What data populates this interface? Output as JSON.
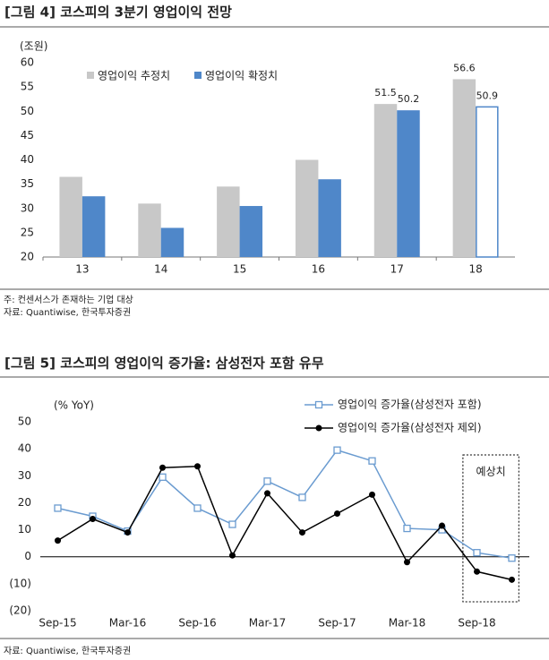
{
  "chart_data": [
    {
      "type": "bar",
      "title": "[그림 4] 코스피의 3분기 영업이익 전망",
      "unit_label": "(조원)",
      "categories": [
        "13",
        "14",
        "15",
        "16",
        "17",
        "18"
      ],
      "series": [
        {
          "name": "영업이익 추정치",
          "color": "#c8c8c8",
          "values": [
            36.5,
            31,
            34.5,
            40,
            51.5,
            56.6
          ],
          "value_labels": [
            null,
            null,
            null,
            null,
            "51.5",
            "56.6"
          ]
        },
        {
          "name": "영업이익 확정치",
          "color": "#4f87c9",
          "values": [
            32.5,
            26,
            30.5,
            36,
            50.2,
            50.9
          ],
          "value_labels": [
            null,
            null,
            null,
            null,
            "50.2",
            "50.9"
          ],
          "hollow_indices": [
            5
          ]
        }
      ],
      "ylim": [
        20,
        60
      ],
      "yticks": [
        20,
        25,
        30,
        35,
        40,
        45,
        50,
        55,
        60
      ],
      "legend": "top-left",
      "notes": [
        "주: 컨센서스가 존재하는 기업 대상",
        "자료: Quantiwise, 한국투자증권"
      ]
    },
    {
      "type": "line",
      "title": "[그림 5] 코스피의 영업이익 증가율: 삼성전자 포함 유무",
      "unit_label": "(% YoY)",
      "categories": [
        "Sep-15",
        null,
        "Mar-16",
        null,
        "Sep-16",
        null,
        "Mar-17",
        null,
        "Sep-17",
        null,
        "Mar-18",
        null,
        "Sep-18",
        null
      ],
      "series": [
        {
          "name": "영업이익 증가율(삼성전자 포함)",
          "color": "#6a9bd0",
          "marker": "square-open",
          "values": [
            18,
            15,
            9.5,
            29.5,
            18,
            12,
            28,
            22,
            39.5,
            35.5,
            10.5,
            10,
            1.5,
            -0.5
          ]
        },
        {
          "name": "영업이익 증가율(삼성전자 제외)",
          "color": "#000000",
          "marker": "circle",
          "values": [
            6,
            14,
            9,
            33,
            33.5,
            0.5,
            23.5,
            9,
            16,
            23,
            -2,
            11.5,
            -5.5,
            -8.5
          ]
        }
      ],
      "ylim": [
        -20,
        50
      ],
      "yticks": [
        {
          "value": -20,
          "label": "(20)"
        },
        {
          "value": -10,
          "label": "(10)"
        },
        0,
        10,
        20,
        30,
        40,
        50
      ],
      "legend": "top-right",
      "annotation": {
        "text": "예상치",
        "start": 12,
        "end": 13
      },
      "notes": [
        "자료: Quantiwise, 한국투자증권"
      ]
    }
  ]
}
